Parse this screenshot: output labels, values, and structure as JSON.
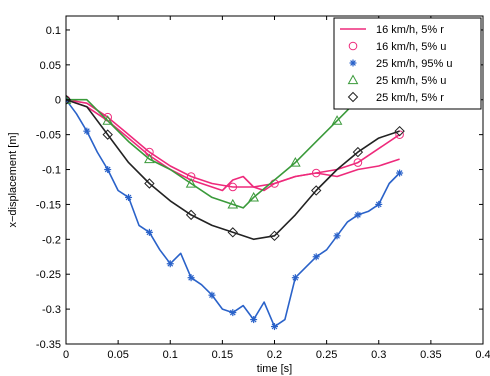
{
  "chart_data": {
    "type": "line",
    "title": "",
    "xlabel": "time [s]",
    "ylabel": "x−displacement [m]",
    "xlim": [
      0,
      0.4
    ],
    "ylim": [
      -0.35,
      0.12
    ],
    "grid": false,
    "legend_position": "top-right",
    "x_ticks": [
      "0",
      "0.05",
      "0.1",
      "0.15",
      "0.2",
      "0.25",
      "0.3",
      "0.35",
      "0.4"
    ],
    "y_ticks": [
      "0.1",
      "0.05",
      "0",
      "-0.05",
      "-0.1",
      "-0.15",
      "-0.2",
      "-0.25",
      "-0.3",
      "-0.35"
    ],
    "series": [
      {
        "name": "16 km/h, 5% r",
        "color": "#ee2a7b",
        "marker": "none",
        "x": [
          0,
          0.02,
          0.04,
          0.06,
          0.08,
          0.1,
          0.12,
          0.14,
          0.15,
          0.16,
          0.17,
          0.18,
          0.19,
          0.2,
          0.22,
          0.24,
          0.26,
          0.28,
          0.3,
          0.32
        ],
        "y": [
          0,
          -0.01,
          -0.03,
          -0.055,
          -0.08,
          -0.1,
          -0.115,
          -0.125,
          -0.13,
          -0.115,
          -0.11,
          -0.125,
          -0.13,
          -0.12,
          -0.11,
          -0.105,
          -0.11,
          -0.1,
          -0.095,
          -0.085
        ]
      },
      {
        "name": "16 km/h, 5% u",
        "color": "#ee2a7b",
        "marker": "circle",
        "x": [
          0,
          0.02,
          0.04,
          0.06,
          0.08,
          0.1,
          0.12,
          0.14,
          0.16,
          0.18,
          0.2,
          0.22,
          0.24,
          0.26,
          0.28,
          0.3,
          0.32
        ],
        "y": [
          0,
          -0.005,
          -0.025,
          -0.05,
          -0.075,
          -0.095,
          -0.11,
          -0.12,
          -0.125,
          -0.125,
          -0.12,
          -0.11,
          -0.105,
          -0.1,
          -0.09,
          -0.07,
          -0.05
        ]
      },
      {
        "name": "25 km/h, 95% u",
        "color": "#2a62c9",
        "marker": "star",
        "x": [
          0,
          0.01,
          0.02,
          0.03,
          0.04,
          0.05,
          0.06,
          0.07,
          0.08,
          0.09,
          0.1,
          0.11,
          0.12,
          0.13,
          0.14,
          0.15,
          0.16,
          0.17,
          0.18,
          0.19,
          0.2,
          0.21,
          0.22,
          0.23,
          0.24,
          0.25,
          0.26,
          0.27,
          0.28,
          0.29,
          0.3,
          0.31,
          0.32
        ],
        "y": [
          0,
          -0.02,
          -0.045,
          -0.075,
          -0.1,
          -0.13,
          -0.14,
          -0.18,
          -0.19,
          -0.215,
          -0.235,
          -0.22,
          -0.255,
          -0.265,
          -0.28,
          -0.3,
          -0.305,
          -0.295,
          -0.315,
          -0.29,
          -0.325,
          -0.315,
          -0.255,
          -0.24,
          -0.225,
          -0.215,
          -0.195,
          -0.175,
          -0.165,
          -0.16,
          -0.15,
          -0.12,
          -0.105
        ]
      },
      {
        "name": "25 km/h, 5% u",
        "color": "#3a9a3a",
        "marker": "triangle",
        "x": [
          0,
          0.02,
          0.04,
          0.06,
          0.08,
          0.1,
          0.12,
          0.14,
          0.16,
          0.17,
          0.18,
          0.2,
          0.22,
          0.24,
          0.26,
          0.28,
          0.3,
          0.32
        ],
        "y": [
          0,
          0,
          -0.03,
          -0.06,
          -0.085,
          -0.1,
          -0.12,
          -0.14,
          -0.15,
          -0.155,
          -0.14,
          -0.115,
          -0.09,
          -0.06,
          -0.03,
          0,
          0.04,
          0.08
        ]
      },
      {
        "name": "25 km/h, 5% r",
        "color": "#222222",
        "marker": "diamond",
        "x": [
          0,
          0.02,
          0.04,
          0.06,
          0.08,
          0.1,
          0.12,
          0.14,
          0.16,
          0.18,
          0.2,
          0.22,
          0.24,
          0.26,
          0.28,
          0.3,
          0.32
        ],
        "y": [
          0,
          -0.01,
          -0.05,
          -0.09,
          -0.12,
          -0.145,
          -0.165,
          -0.18,
          -0.19,
          -0.2,
          -0.195,
          -0.165,
          -0.13,
          -0.1,
          -0.075,
          -0.055,
          -0.045
        ]
      }
    ]
  }
}
